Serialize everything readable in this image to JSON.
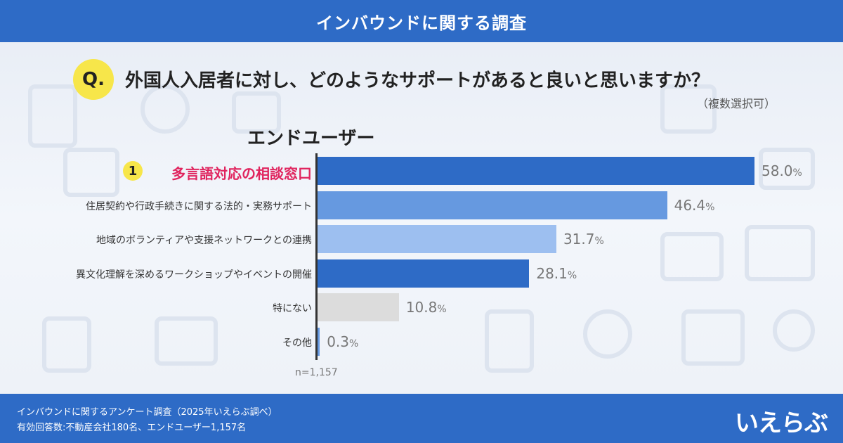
{
  "header": {
    "title": "インバウンドに関する調査"
  },
  "question": {
    "badge": "Q.",
    "text": "外国人入居者に対し、どのようなサポートがあると良いと思いますか？",
    "note": "（複数選択可）"
  },
  "group_title": "エンドユーザー",
  "chart_data": {
    "type": "bar",
    "orientation": "horizontal",
    "title": "",
    "xlabel": "",
    "ylabel": "",
    "xlim": [
      0,
      100
    ],
    "unit": "%",
    "sample_size": "n=1,157",
    "top_rank": "1",
    "categories": [
      "多言語対応の相談窓口",
      "住居契約や行政手続きに関する法的・実務サポート",
      "地域のボランティアや支援ネットワークとの連携",
      "異文化理解を深めるワークショップやイベントの開催",
      "特にない",
      "その他"
    ],
    "values": [
      58.0,
      46.4,
      31.7,
      28.1,
      10.8,
      0.3
    ],
    "value_labels": [
      "58.0",
      "46.4",
      "31.7",
      "28.1",
      "10.8",
      "0.3"
    ],
    "colors": [
      "#2e6bc6",
      "#6699e0",
      "#9dbff0",
      "#2e6bc6",
      "#dcdcdc",
      "#6699e0"
    ]
  },
  "footer": {
    "line1": "インバウンドに関するアンケート調査（2025年いえらぶ調べ）",
    "line2": "有効回答数:不動産会社180名、エンドユーザー1,157名",
    "logo": "いえらぶ"
  }
}
